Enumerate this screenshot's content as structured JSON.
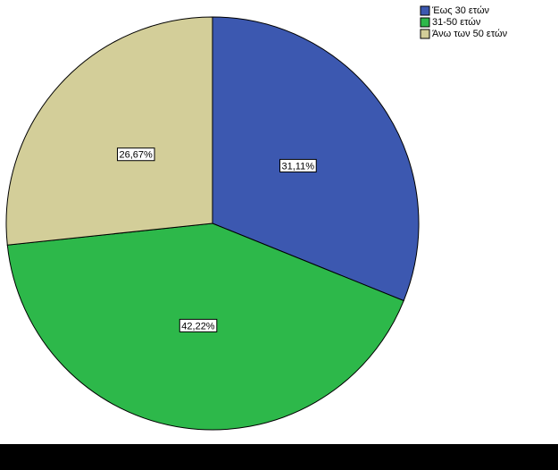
{
  "chart_data": {
    "type": "pie",
    "categories": [
      "Έως 30 ετών",
      "31-50 ετών",
      "Άνω των 50 ετών"
    ],
    "values": [
      31.11,
      42.22,
      26.67
    ],
    "value_labels": [
      "31,11%",
      "42,22%",
      "26,67%"
    ],
    "colors": [
      "#3c58b0",
      "#2db84a",
      "#d3ce99"
    ]
  }
}
